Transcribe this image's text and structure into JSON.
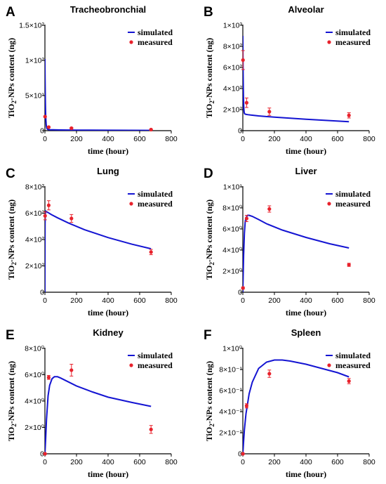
{
  "figure": {
    "colors": {
      "simulated": "#1414d2",
      "measured": "#e8222c",
      "axis": "#000000"
    }
  },
  "chart_data": [
    {
      "panel_letter": "A",
      "type": "line",
      "title": "Tracheobronchial",
      "xlabel": "time (hour)",
      "ylabel": "TiO2-NPs content (ng)",
      "xlim": [
        0,
        800
      ],
      "ylim": [
        0,
        150
      ],
      "x_ticks": [
        0,
        200,
        400,
        600,
        800
      ],
      "x_tick_labels": [
        "0",
        "200",
        "400",
        "600",
        "800"
      ],
      "y_ticks": [
        0,
        50,
        100,
        150
      ],
      "y_tick_labels": [
        "0",
        "5×10¹",
        "1×10²",
        "1.5×10²"
      ],
      "legend": [
        "simulated",
        "measured"
      ],
      "legend_position": "top-right",
      "series": [
        {
          "name": "simulated",
          "kind": "line",
          "x": [
            0,
            1,
            2,
            3,
            4,
            5,
            6,
            8,
            10,
            12,
            15,
            20,
            30,
            50,
            100,
            200,
            400,
            672
          ],
          "y": [
            102,
            75,
            55,
            40,
            29,
            21,
            16,
            9,
            5.5,
            3.5,
            2.2,
            1.6,
            1.3,
            1.2,
            1.0,
            0.8,
            0.6,
            0.4
          ]
        },
        {
          "name": "measured",
          "kind": "scatter",
          "x": [
            1,
            24,
            168,
            672
          ],
          "y": [
            20,
            5,
            3.5,
            1.5
          ],
          "err": [
            0,
            0.8,
            1,
            0.6
          ]
        }
      ]
    },
    {
      "panel_letter": "B",
      "type": "line",
      "title": "Alveolar",
      "xlabel": "time (hour)",
      "ylabel": "TiO2-NPs content (ng)",
      "xlim": [
        0,
        800
      ],
      "ylim": [
        0,
        1000
      ],
      "x_ticks": [
        0,
        200,
        400,
        600,
        800
      ],
      "x_tick_labels": [
        "0",
        "200",
        "400",
        "600",
        "800"
      ],
      "y_ticks": [
        0,
        200,
        400,
        600,
        800,
        1000
      ],
      "y_tick_labels": [
        "0",
        "2×10²",
        "4×10²",
        "6×10²",
        "8×10²",
        "1×10³"
      ],
      "legend": [
        "simulated",
        "measured"
      ],
      "legend_position": "top-right",
      "series": [
        {
          "name": "simulated",
          "kind": "line",
          "x": [
            0,
            1,
            2,
            3,
            4,
            6,
            8,
            10,
            12,
            15,
            20,
            30,
            50,
            100,
            200,
            400,
            672
          ],
          "y": [
            900,
            700,
            530,
            410,
            320,
            220,
            180,
            165,
            160,
            157,
            155,
            152,
            148,
            140,
            128,
            108,
            85
          ]
        },
        {
          "name": "measured",
          "kind": "scatter",
          "x": [
            1,
            24,
            168,
            672
          ],
          "y": [
            670,
            265,
            180,
            145
          ],
          "err": [
            90,
            45,
            35,
            25
          ]
        }
      ]
    },
    {
      "panel_letter": "C",
      "type": "line",
      "title": "Lung",
      "xlabel": "time (hour)",
      "ylabel": "TiO2-NPs content (ng)",
      "xlim": [
        0,
        800
      ],
      "ylim": [
        0,
        800
      ],
      "x_ticks": [
        0,
        200,
        400,
        600,
        800
      ],
      "x_tick_labels": [
        "0",
        "200",
        "400",
        "600",
        "800"
      ],
      "y_ticks": [
        0,
        200,
        400,
        600,
        800
      ],
      "y_tick_labels": [
        "0",
        "2×10²",
        "4×10²",
        "6×10²",
        "8×10²"
      ],
      "legend": [
        "simulated",
        "measured"
      ],
      "legend_position": "top-right",
      "series": [
        {
          "name": "simulated",
          "kind": "line",
          "x": [
            0,
            1,
            2,
            4,
            6,
            8,
            12,
            20,
            40,
            80,
            150,
            250,
            400,
            550,
            672
          ],
          "y": [
            0,
            520,
            580,
            610,
            615,
            613,
            610,
            605,
            590,
            565,
            525,
            475,
            415,
            365,
            330
          ]
        },
        {
          "name": "measured",
          "kind": "scatter",
          "x": [
            1,
            24,
            168,
            672
          ],
          "y": [
            580,
            660,
            560,
            305
          ],
          "err": [
            30,
            35,
            30,
            20
          ]
        }
      ]
    },
    {
      "panel_letter": "D",
      "type": "line",
      "title": "Liver",
      "xlabel": "time (hour)",
      "ylabel": "TiO2-NPs content (ng)",
      "xlim": [
        0,
        800
      ],
      "ylim": [
        0,
        10
      ],
      "x_ticks": [
        0,
        200,
        400,
        600,
        800
      ],
      "x_tick_labels": [
        "0",
        "200",
        "400",
        "600",
        "800"
      ],
      "y_ticks": [
        0,
        2,
        4,
        6,
        8,
        10
      ],
      "y_tick_labels": [
        "0",
        "2×10⁰",
        "4×10⁰",
        "6×10⁰",
        "8×10⁰",
        "1×10¹"
      ],
      "legend": [
        "simulated",
        "measured"
      ],
      "legend_position": "top-right",
      "series": [
        {
          "name": "simulated",
          "kind": "line",
          "x": [
            0,
            2,
            5,
            10,
            15,
            20,
            30,
            40,
            60,
            100,
            150,
            250,
            400,
            550,
            672
          ],
          "y": [
            0,
            1.5,
            3.5,
            5.6,
            6.7,
            7.1,
            7.3,
            7.3,
            7.2,
            6.9,
            6.5,
            5.9,
            5.2,
            4.6,
            4.2
          ]
        },
        {
          "name": "measured",
          "kind": "scatter",
          "x": [
            1,
            24,
            168,
            672
          ],
          "y": [
            0.4,
            7.0,
            7.9,
            2.6
          ],
          "err": [
            0.1,
            0.3,
            0.3,
            0.15
          ]
        }
      ]
    },
    {
      "panel_letter": "E",
      "type": "line",
      "title": "Kidney",
      "xlabel": "time (hour)",
      "ylabel": "TiO2-NPs content (ng)",
      "xlim": [
        0,
        800
      ],
      "ylim": [
        0,
        8
      ],
      "x_ticks": [
        0,
        200,
        400,
        600,
        800
      ],
      "x_tick_labels": [
        "0",
        "200",
        "400",
        "600",
        "800"
      ],
      "y_ticks": [
        0,
        2,
        4,
        6,
        8
      ],
      "y_tick_labels": [
        "0",
        "2×10⁰",
        "4×10⁰",
        "6×10⁰",
        "8×10⁰"
      ],
      "legend": [
        "simulated",
        "measured"
      ],
      "legend_position": "top-right",
      "series": [
        {
          "name": "simulated",
          "kind": "line",
          "x": [
            0,
            5,
            10,
            20,
            30,
            45,
            60,
            80,
            100,
            150,
            200,
            300,
            400,
            550,
            672
          ],
          "y": [
            0,
            1.2,
            2.6,
            4.4,
            5.2,
            5.7,
            5.85,
            5.85,
            5.75,
            5.45,
            5.15,
            4.7,
            4.3,
            3.9,
            3.6
          ]
        },
        {
          "name": "measured",
          "kind": "scatter",
          "x": [
            1,
            24,
            168,
            672
          ],
          "y": [
            0,
            5.8,
            6.35,
            1.85
          ],
          "err": [
            0,
            0.15,
            0.45,
            0.3
          ]
        }
      ]
    },
    {
      "panel_letter": "F",
      "type": "line",
      "title": "Spleen",
      "xlabel": "time (hour)",
      "ylabel": "TiO2-NPs content (ng)",
      "xlim": [
        0,
        800
      ],
      "ylim": [
        0,
        1
      ],
      "x_ticks": [
        0,
        200,
        400,
        600,
        800
      ],
      "x_tick_labels": [
        "0",
        "200",
        "400",
        "600",
        "800"
      ],
      "y_ticks": [
        0,
        0.2,
        0.4,
        0.6,
        0.8,
        1.0
      ],
      "y_tick_labels": [
        "0",
        "2×10⁻¹",
        "4×10⁻¹",
        "6×10⁻¹",
        "8×10⁻¹",
        "1×10⁰"
      ],
      "legend": [
        "simulated",
        "measured"
      ],
      "legend_position": "top-right",
      "series": [
        {
          "name": "simulated",
          "kind": "line",
          "x": [
            0,
            5,
            10,
            20,
            40,
            60,
            100,
            150,
            200,
            250,
            300,
            400,
            500,
            600,
            672
          ],
          "y": [
            0,
            0.12,
            0.23,
            0.38,
            0.57,
            0.68,
            0.81,
            0.87,
            0.89,
            0.89,
            0.88,
            0.85,
            0.81,
            0.77,
            0.73
          ]
        },
        {
          "name": "measured",
          "kind": "scatter",
          "x": [
            1,
            24,
            168,
            672
          ],
          "y": [
            0,
            0.455,
            0.76,
            0.69
          ],
          "err": [
            0,
            0.02,
            0.035,
            0.025
          ]
        }
      ]
    }
  ]
}
